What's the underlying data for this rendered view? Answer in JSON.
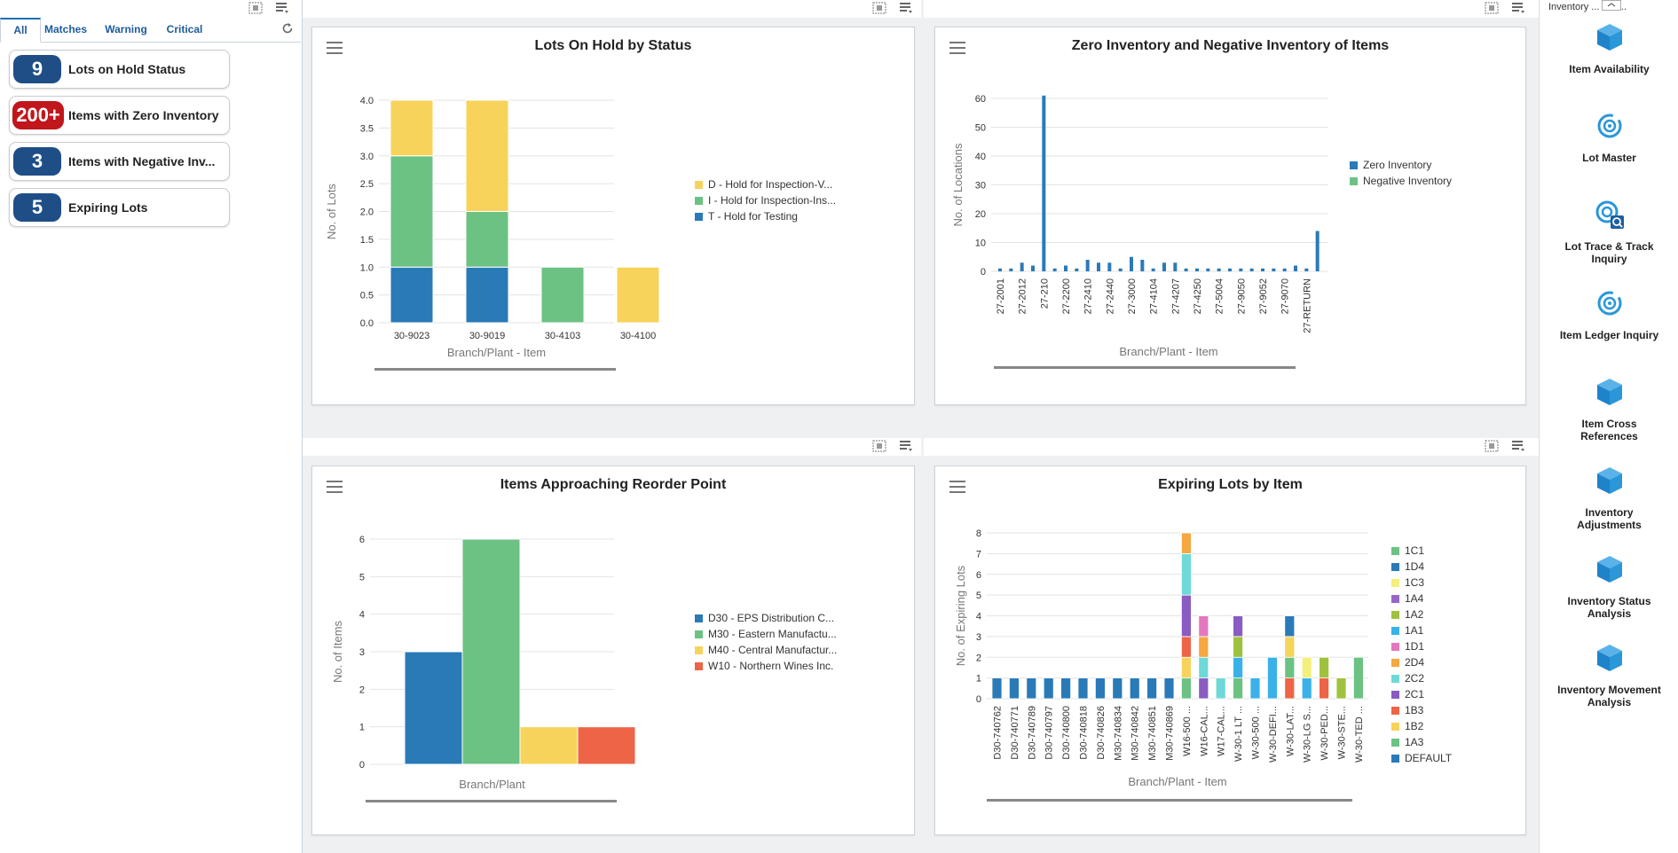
{
  "watchlist": {
    "tabs": [
      "All",
      "Matches",
      "Warning",
      "Critical"
    ],
    "items": [
      {
        "count": "9",
        "label": "Lots on Hold Status",
        "color": "#1f4e87"
      },
      {
        "count": "200+",
        "label": "Items with Zero Inventory",
        "color": "#c0161c"
      },
      {
        "count": "3",
        "label": "Items with Negative Inv...",
        "color": "#1f4e87"
      },
      {
        "count": "5",
        "label": "Expiring Lots",
        "color": "#1f4e87"
      }
    ]
  },
  "springboard": {
    "header": "Inventory ... trol ...",
    "items": [
      {
        "label": "Item Availability",
        "icon": "cube-icon"
      },
      {
        "label": "Lot Master",
        "icon": "target-icon"
      },
      {
        "label": "Lot Trace & Track Inquiry",
        "icon": "search-target-icon"
      },
      {
        "label": "Item Ledger Inquiry",
        "icon": "target-icon"
      },
      {
        "label": "Item Cross References",
        "icon": "cube-icon"
      },
      {
        "label": "Inventory Adjustments",
        "icon": "cube-icon"
      },
      {
        "label": "Inventory Status Analysis",
        "icon": "cube-icon"
      },
      {
        "label": "Inventory Movement Analysis",
        "icon": "cube-icon"
      }
    ]
  },
  "chart_data": [
    {
      "id": "lots-on-hold",
      "type": "bar",
      "stacked": true,
      "title": "Lots On Hold by Status",
      "xlabel": "Branch/Plant - Item",
      "ylabel": "No. of Lots",
      "ylim": [
        0,
        4
      ],
      "yticks": [
        "0.0",
        "0.5",
        "1.0",
        "1.5",
        "2.0",
        "2.5",
        "3.0",
        "3.5",
        "4.0"
      ],
      "categories": [
        "30-9023",
        "30-9019",
        "30-4103",
        "30-4100"
      ],
      "series": [
        {
          "name": "T - Hold for Testing",
          "color": "#2a7ab8",
          "values": [
            1,
            1,
            0,
            0
          ]
        },
        {
          "name": "I - Hold for Inspection-Ins...",
          "color": "#6cc283",
          "values": [
            2,
            1,
            1,
            0
          ]
        },
        {
          "name": "D - Hold for Inspection-V...",
          "color": "#f7d35c",
          "values": [
            1,
            2,
            0,
            1
          ]
        }
      ],
      "legend_order": [
        "D - Hold for Inspection-V...",
        "I - Hold for Inspection-Ins...",
        "T - Hold for Testing"
      ]
    },
    {
      "id": "zero-negative",
      "type": "bar",
      "title": "Zero Inventory and Negative Inventory of Items",
      "xlabel": "Branch/Plant - Item",
      "ylabel": "No. of Locations",
      "ylim": [
        0,
        60
      ],
      "yticks": [
        "0",
        "10",
        "20",
        "30",
        "40",
        "50",
        "60"
      ],
      "tick_labels": [
        "27-2001",
        "27-2012",
        "27-210",
        "27-2200",
        "27-2410",
        "27-2440",
        "27-3000",
        "27-4104",
        "27-4207",
        "27-4250",
        "27-5004",
        "27-9050",
        "27-9052",
        "27-9070",
        "27-RETURN"
      ],
      "series": [
        {
          "name": "Zero Inventory",
          "color": "#2a7ab8",
          "values": [
            1,
            1,
            3,
            2,
            61,
            1,
            2,
            1,
            4,
            3,
            3,
            1,
            5,
            4,
            1,
            3,
            3,
            1,
            1,
            1,
            1,
            1,
            1,
            1,
            1,
            1,
            1,
            2,
            1,
            14
          ]
        },
        {
          "name": "Negative Inventory",
          "color": "#6cc283",
          "values": []
        }
      ]
    },
    {
      "id": "reorder-point",
      "type": "bar",
      "title": "Items Approaching Reorder Point",
      "xlabel": "Branch/Plant",
      "ylabel": "No. of Items",
      "ylim": [
        0,
        6
      ],
      "yticks": [
        "0",
        "1",
        "2",
        "3",
        "4",
        "5",
        "6"
      ],
      "series": [
        {
          "name": "D30 - EPS Distribution C...",
          "color": "#2a7ab8",
          "value": 3
        },
        {
          "name": "M30 - Eastern Manufactu...",
          "color": "#6cc283",
          "value": 6
        },
        {
          "name": "M40 - Central Manufactur...",
          "color": "#f7d35c",
          "value": 1
        },
        {
          "name": "W10 - Northern Wines Inc.",
          "color": "#ee6446",
          "value": 1
        }
      ]
    },
    {
      "id": "expiring-lots",
      "type": "bar",
      "stacked": true,
      "title": "Expiring Lots by Item",
      "xlabel": "Branch/Plant - Item",
      "ylabel": "No. of Expiring Lots",
      "ylim": [
        0,
        8
      ],
      "yticks": [
        "0",
        "1",
        "2",
        "3",
        "4",
        "5",
        "6",
        "7",
        "8"
      ],
      "categories": [
        "D30-740762",
        "D30-740771",
        "D30-740789",
        "D30-740797",
        "D30-740800",
        "D30-740818",
        "D30-740826",
        "M30-740834",
        "M30-740842",
        "M30-740851",
        "M30-740869",
        "W16-500 ...",
        "W16-CAL...",
        "W17-CAL...",
        "W-30-1 LT ...",
        "W-30-500 ...",
        "W-30-DEFI...",
        "W-30-LAT...",
        "W-30-LG S...",
        "W-30-PED...",
        "W-30-STE...",
        "W-30-TED ..."
      ],
      "legend": [
        {
          "name": "1C1",
          "color": "#6cc283"
        },
        {
          "name": "1D4",
          "color": "#2a7ab8"
        },
        {
          "name": "1C3",
          "color": "#f4f07c"
        },
        {
          "name": "1A4",
          "color": "#9966c8"
        },
        {
          "name": "1A2",
          "color": "#9ec23d"
        },
        {
          "name": "1A1",
          "color": "#3ab1e9"
        },
        {
          "name": "1D1",
          "color": "#e477c0"
        },
        {
          "name": "2D4",
          "color": "#f6a73f"
        },
        {
          "name": "2C2",
          "color": "#6ed9d8"
        },
        {
          "name": "2C1",
          "color": "#8a5cc2"
        },
        {
          "name": "1B3",
          "color": "#ee6446"
        },
        {
          "name": "1B2",
          "color": "#f7d35c"
        },
        {
          "name": "1A3",
          "color": "#6cc283"
        },
        {
          "name": "DEFAULT",
          "color": "#2a7ab8"
        }
      ],
      "stacks": [
        [
          [
            "DEFAULT",
            1
          ]
        ],
        [
          [
            "DEFAULT",
            1
          ]
        ],
        [
          [
            "DEFAULT",
            1
          ]
        ],
        [
          [
            "DEFAULT",
            1
          ]
        ],
        [
          [
            "DEFAULT",
            1
          ]
        ],
        [
          [
            "DEFAULT",
            1
          ]
        ],
        [
          [
            "DEFAULT",
            1
          ]
        ],
        [
          [
            "DEFAULT",
            1
          ]
        ],
        [
          [
            "DEFAULT",
            1
          ]
        ],
        [
          [
            "DEFAULT",
            1
          ]
        ],
        [
          [
            "DEFAULT",
            1
          ]
        ],
        [
          [
            "1A3",
            1
          ],
          [
            "1B2",
            1
          ],
          [
            "1B3",
            1
          ],
          [
            "2C1",
            2
          ],
          [
            "2C2",
            2
          ],
          [
            "2D4",
            1
          ]
        ],
        [
          [
            "2C1",
            1
          ],
          [
            "2C2",
            1
          ],
          [
            "2D4",
            1
          ],
          [
            "1D1",
            1
          ]
        ],
        [
          [
            "2C2",
            1
          ]
        ],
        [
          [
            "1A3",
            1
          ],
          [
            "1A1",
            1
          ],
          [
            "1A2",
            1
          ],
          [
            "2C1",
            1
          ]
        ],
        [
          [
            "1A1",
            1
          ]
        ],
        [
          [
            "1A1",
            2
          ]
        ],
        [
          [
            "1B3",
            1
          ],
          [
            "1A3",
            1
          ],
          [
            "1B2",
            1
          ],
          [
            "1D4",
            1
          ]
        ],
        [
          [
            "1A1",
            1
          ],
          [
            "1C3",
            1
          ]
        ],
        [
          [
            "1B3",
            1
          ],
          [
            "1A2",
            1
          ]
        ],
        [
          [
            "1A2",
            1
          ]
        ],
        [
          [
            "1A3",
            2
          ]
        ]
      ]
    }
  ]
}
